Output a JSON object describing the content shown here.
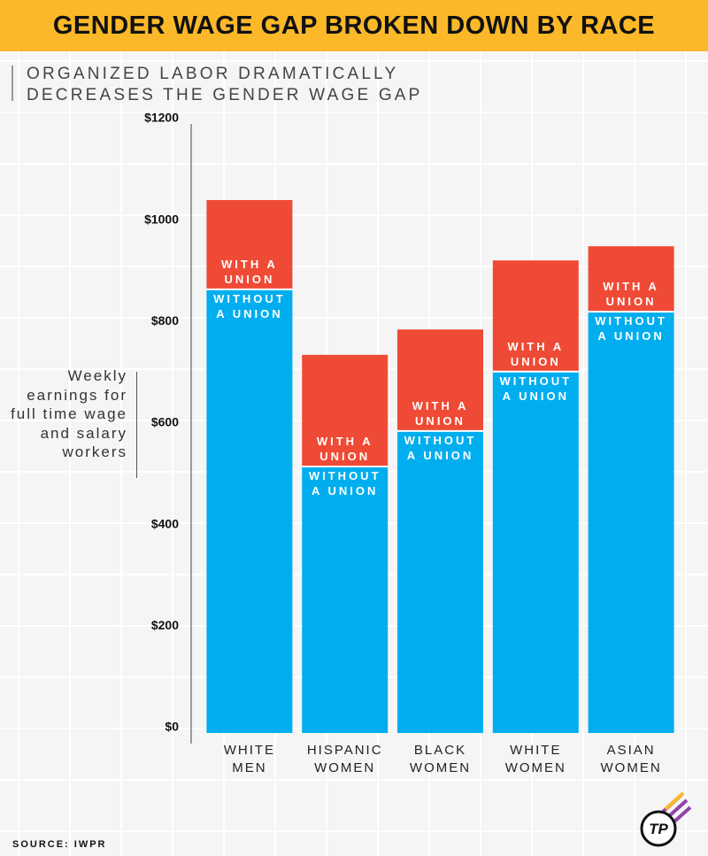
{
  "chart_data": {
    "type": "stacked_bar",
    "title": "GENDER WAGE GAP BROKEN DOWN BY RACE",
    "subtitle": "ORGANIZED LABOR DRAMATICALLY DECREASES THE GENDER WAGE GAP",
    "y_label": "Weekly earnings for full time wage and salary workers",
    "categories": [
      "WHITE MEN",
      "HISPANIC WOMEN",
      "BLACK WOMEN",
      "WHITE WOMEN",
      "ASIAN WOMEN"
    ],
    "series": [
      {
        "name": "WITHOUT A UNION",
        "color": "#00aeef",
        "values": [
          874,
          525,
          595,
          712,
          830
        ]
      },
      {
        "name": "WITH A UNION",
        "color": "#ef4a35",
        "values": [
          176,
          220,
          200,
          219,
          129
        ]
      }
    ],
    "ylim": [
      0,
      1200
    ],
    "yticks": [
      {
        "value": 0,
        "label": "$0"
      },
      {
        "value": 200,
        "label": "$200"
      },
      {
        "value": 400,
        "label": "$400"
      },
      {
        "value": 600,
        "label": "$600"
      },
      {
        "value": 800,
        "label": "$800"
      },
      {
        "value": 1000,
        "label": "$1000"
      },
      {
        "value": 1200,
        "label": "$1200"
      }
    ],
    "source": "SOURCE: IWPR",
    "logo_text": "TP"
  }
}
